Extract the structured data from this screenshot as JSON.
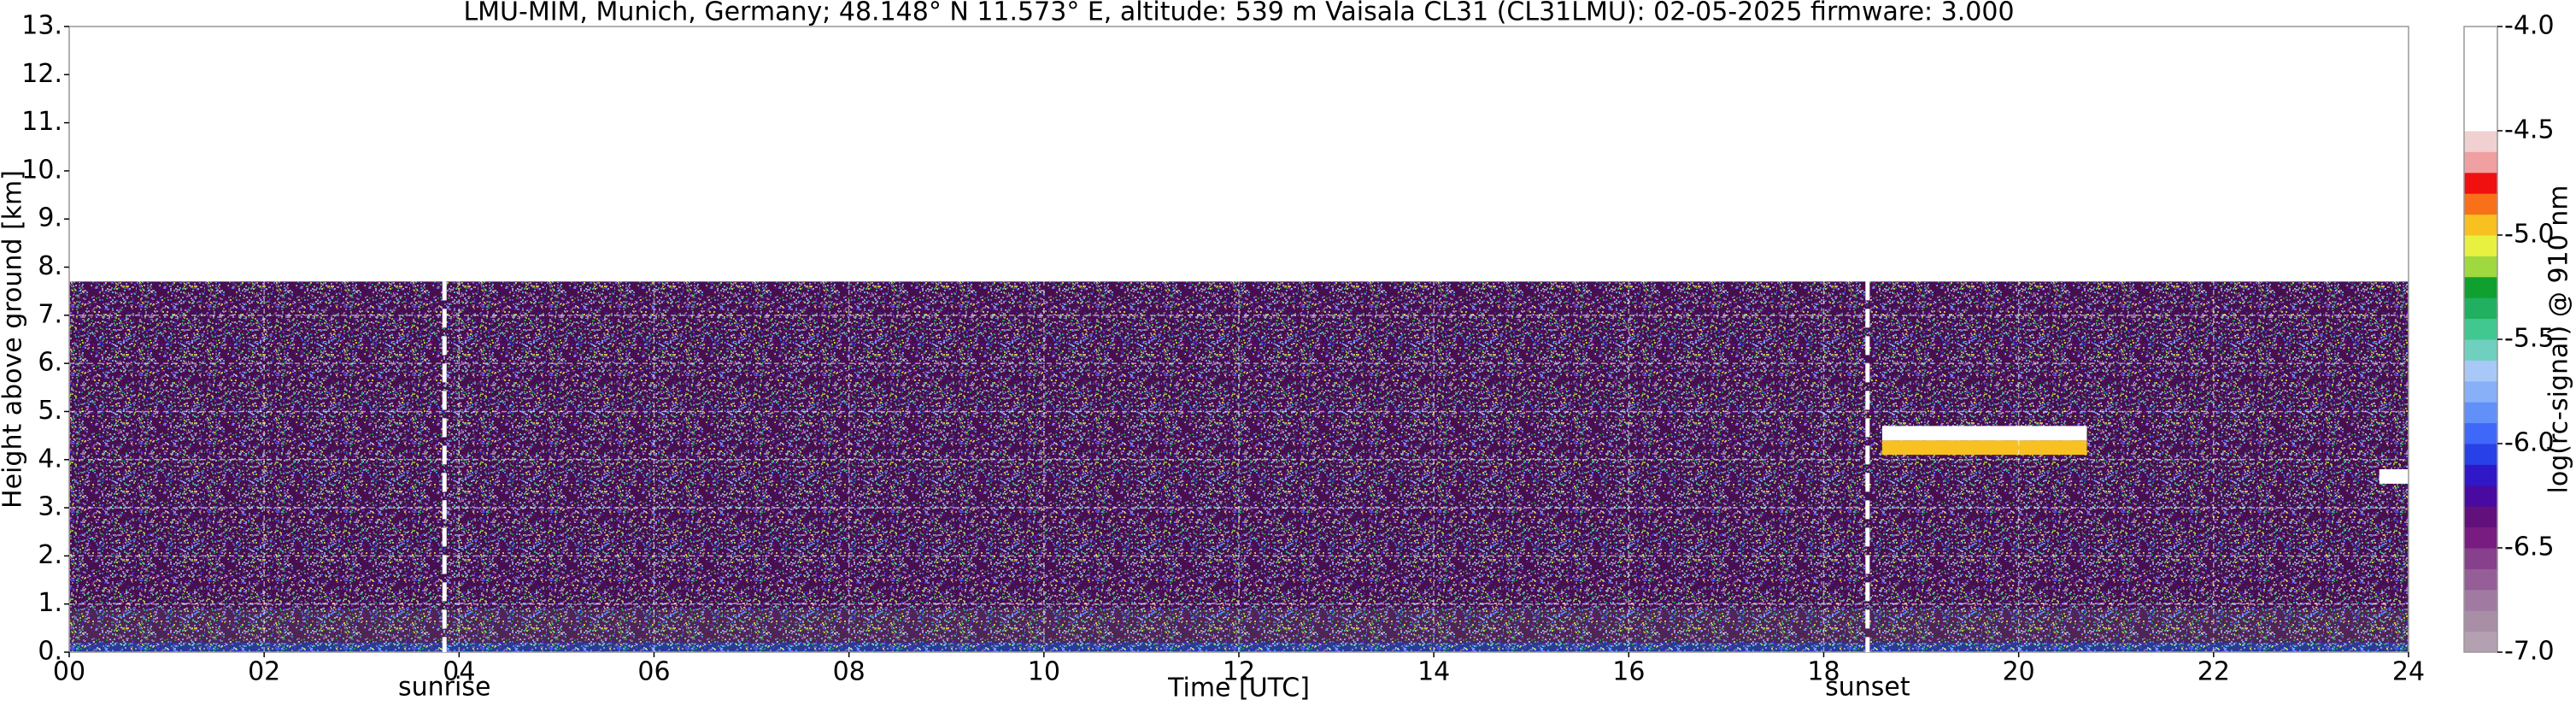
{
  "chart_data": {
    "type": "heatmap",
    "title": "LMU-MIM, Munich, Germany; 48.148° N 11.573° E, altitude: 539 m    Vaisala CL31 (CL31LMU): 02-05-2025    firmware: 3.000",
    "xlabel": "Time [UTC]",
    "ylabel": "Height above ground [km]",
    "colorbar_label": "log(rc-signal) @ 910 nm",
    "xlim": [
      0,
      24
    ],
    "xticks": [
      {
        "value": 0,
        "label": "00"
      },
      {
        "value": 2,
        "label": "02"
      },
      {
        "value": 4,
        "label": "04"
      },
      {
        "value": 6,
        "label": "06"
      },
      {
        "value": 8,
        "label": "08"
      },
      {
        "value": 10,
        "label": "10"
      },
      {
        "value": 12,
        "label": "12"
      },
      {
        "value": 14,
        "label": "14"
      },
      {
        "value": 16,
        "label": "16"
      },
      {
        "value": 18,
        "label": "18"
      },
      {
        "value": 20,
        "label": "20"
      },
      {
        "value": 22,
        "label": "22"
      },
      {
        "value": 24,
        "label": "24"
      }
    ],
    "ylim": [
      0,
      13
    ],
    "yticks": [
      {
        "value": 0,
        "label": "0."
      },
      {
        "value": 1,
        "label": "1."
      },
      {
        "value": 2,
        "label": "2."
      },
      {
        "value": 3,
        "label": "3."
      },
      {
        "value": 4,
        "label": "4."
      },
      {
        "value": 5,
        "label": "5."
      },
      {
        "value": 6,
        "label": "6."
      },
      {
        "value": 7,
        "label": "7."
      },
      {
        "value": 8,
        "label": "8."
      },
      {
        "value": 9,
        "label": "9."
      },
      {
        "value": 10,
        "label": "10."
      },
      {
        "value": 11,
        "label": "11."
      },
      {
        "value": 12,
        "label": "12."
      },
      {
        "value": 13,
        "label": "13."
      }
    ],
    "clim": [
      -7,
      -4
    ],
    "cticks": [
      {
        "value": -7,
        "label": "-7.0"
      },
      {
        "value": -6.5,
        "label": "-6.5"
      },
      {
        "value": -6,
        "label": "-6.0"
      },
      {
        "value": -5.5,
        "label": "-5.5"
      },
      {
        "value": -5,
        "label": "-5.0"
      },
      {
        "value": -4.5,
        "label": "-4.5"
      },
      {
        "value": -4,
        "label": "-4.0"
      }
    ],
    "colormap": [
      "#b3a0b1",
      "#a88fa6",
      "#a07aa0",
      "#955e97",
      "#87408b",
      "#781c82",
      "#62107c",
      "#480aa0",
      "#3018c8",
      "#2840e8",
      "#4068f8",
      "#6090f8",
      "#88b0f8",
      "#a8c8f8",
      "#70d0c0",
      "#40c890",
      "#20b060",
      "#10a030",
      "#a0d840",
      "#e8f040",
      "#f8c020",
      "#f87018",
      "#f01010",
      "#f0a0a0",
      "#f0d0d0",
      "#ffffff",
      "#ffffff",
      "#ffffff",
      "#ffffff",
      "#ffffff"
    ],
    "grid": true,
    "regions": [
      {
        "x": [
          0,
          24
        ],
        "y": [
          0,
          7.7
        ],
        "value": -6.4
      },
      {
        "x": [
          0,
          24
        ],
        "y": [
          0.2,
          0.9
        ],
        "value": -6.6
      },
      {
        "x": [
          0,
          24
        ],
        "y": [
          0,
          0.2
        ],
        "value": -6.0
      },
      {
        "x": [
          18.6,
          20.7
        ],
        "y": [
          4.1,
          4.4
        ],
        "value": -4.95
      },
      {
        "x": [
          18.6,
          20.7
        ],
        "y": [
          4.4,
          4.7
        ],
        "value": -4.3
      },
      {
        "x": [
          23.7,
          24
        ],
        "y": [
          3.5,
          3.8
        ],
        "value": -4.4
      }
    ],
    "annotations": [
      {
        "x": 3.85,
        "text": "sunrise"
      },
      {
        "x": 18.45,
        "text": "sunset"
      }
    ]
  }
}
